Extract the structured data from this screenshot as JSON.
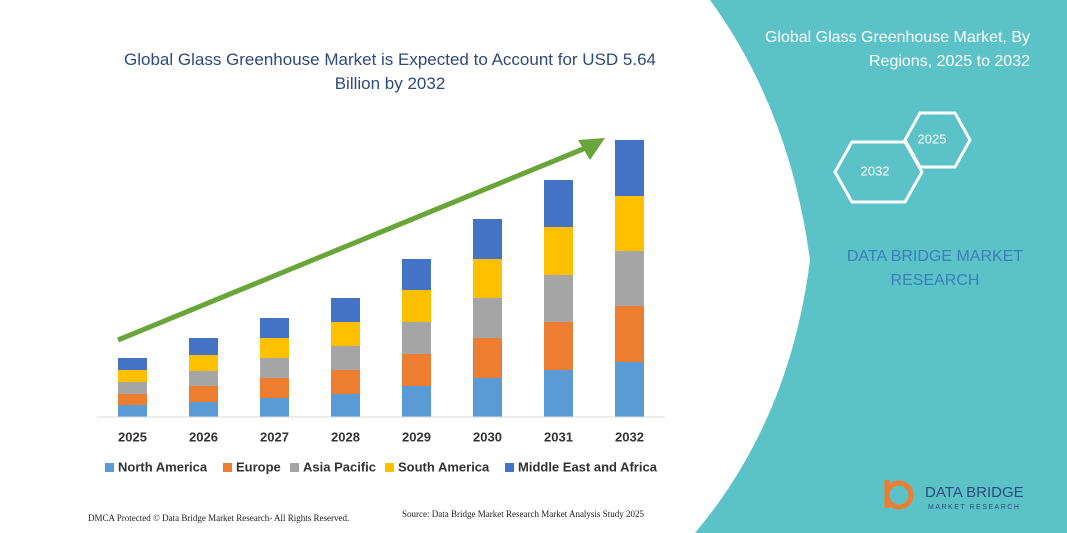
{
  "chart_data": {
    "type": "bar",
    "stacked": true,
    "title": "Global Glass Greenhouse Market is Expected to Account for USD 5.64 Billion by 2032",
    "categories": [
      "2025",
      "2026",
      "2027",
      "2028",
      "2029",
      "2030",
      "2031",
      "2032"
    ],
    "series": [
      {
        "name": "North America",
        "color": "#5b9bd5",
        "values": [
          12,
          15,
          19,
          23,
          31,
          39,
          47,
          55
        ]
      },
      {
        "name": "Europe",
        "color": "#ed7d31",
        "values": [
          11,
          16,
          20,
          24,
          32,
          40,
          48,
          56
        ]
      },
      {
        "name": "Asia Pacific",
        "color": "#a5a5a5",
        "values": [
          12,
          15,
          20,
          24,
          32,
          40,
          47,
          55
        ]
      },
      {
        "name": "South America",
        "color": "#ffc000",
        "values": [
          12,
          16,
          20,
          24,
          32,
          39,
          48,
          55
        ]
      },
      {
        "name": "Middle East and Africa",
        "color": "#4472c4",
        "values": [
          12,
          17,
          20,
          24,
          31,
          40,
          47,
          56
        ]
      }
    ],
    "ylim": [
      0,
      280
    ],
    "grid": false,
    "legend": "bottom"
  },
  "panel": {
    "title": "Global Glass Greenhouse Market, By Regions, 2025 to 2032",
    "hexagons": [
      "2025",
      "2032"
    ],
    "brand": "DATA BRIDGE MARKET RESEARCH"
  },
  "footer": {
    "dmca": "DMCA Protected © Data Bridge Market Research- All Rights Reserved.",
    "source": "Source: Data Bridge Market Research Market Analysis Study 2025",
    "logo_name": "DATA BRIDGE",
    "logo_sub": "MARKET RESEARCH"
  }
}
